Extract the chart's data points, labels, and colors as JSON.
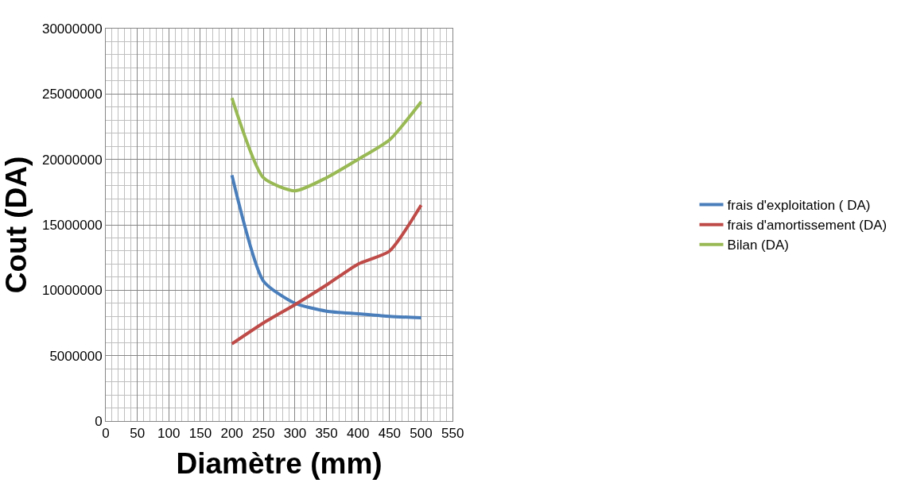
{
  "chart_data": {
    "type": "line",
    "xlabel": "Diamètre (mm)",
    "ylabel": "Cout (DA)",
    "x": [
      200,
      250,
      300,
      350,
      400,
      450,
      500
    ],
    "series": [
      {
        "name": "frais d'exploitation ( DA)",
        "color": "#4a7ebb",
        "values": [
          18800000,
          10700000,
          9000000,
          8400000,
          8200000,
          8000000,
          7900000
        ]
      },
      {
        "name": "frais d'amortissement (DA)",
        "color": "#be4b48",
        "values": [
          5900000,
          7500000,
          8900000,
          10400000,
          12000000,
          13000000,
          16500000
        ]
      },
      {
        "name": "Bilan (DA)",
        "color": "#98b954",
        "values": [
          24700000,
          18600000,
          17600000,
          18600000,
          20000000,
          21500000,
          24400000
        ]
      }
    ],
    "xlim": [
      0,
      550
    ],
    "xticks": [
      0,
      50,
      100,
      150,
      200,
      250,
      300,
      350,
      400,
      450,
      500,
      550
    ],
    "ylim": [
      0,
      30000000
    ],
    "yticks": [
      0,
      5000000,
      10000000,
      15000000,
      20000000,
      25000000,
      30000000
    ],
    "grid": true,
    "legend": "right",
    "marker": "none",
    "line_style": "solid"
  }
}
